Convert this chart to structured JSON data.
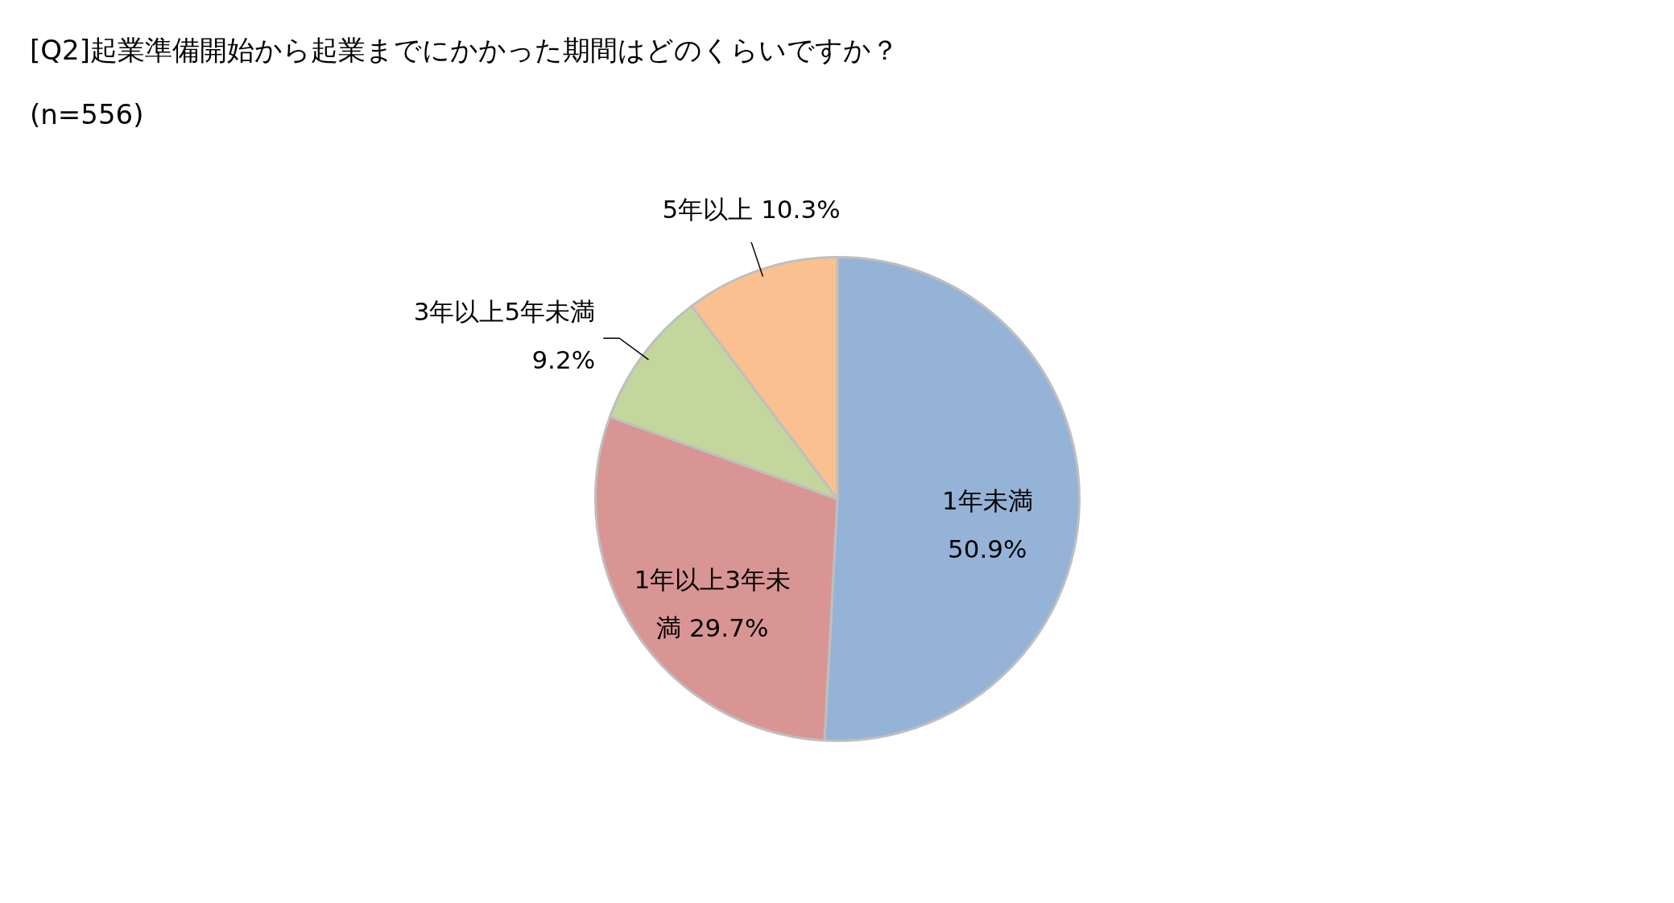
{
  "chart_data": {
    "type": "pie",
    "title": "[Q2]起業準備開始から起業までにかかった期間はどのくらいですか？",
    "subtitle": "(n=556)",
    "categories": [
      "1年未満",
      "1年以上3年未満",
      "3年以上5年未満",
      "5年以上"
    ],
    "values": [
      50.9,
      29.7,
      9.2,
      10.3
    ],
    "colors": [
      "#95b3d7",
      "#d99594",
      "#c3d69b",
      "#fac090"
    ],
    "value_labels": [
      "50.9%",
      "29.7%",
      "9.2%",
      "10.3%"
    ]
  }
}
